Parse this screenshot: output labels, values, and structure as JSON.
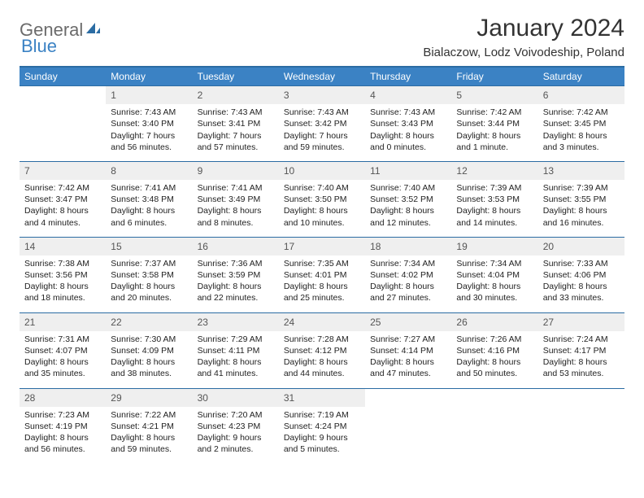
{
  "logo": {
    "part1": "General",
    "part2": "Blue"
  },
  "title": "January 2024",
  "location": "Bialaczow, Lodz Voivodeship, Poland",
  "colors": {
    "header_bg": "#3b82c4",
    "header_text": "#ffffff",
    "daynum_bg": "#efefef",
    "border": "#2b6ca3",
    "logo_gray": "#6b6b6b",
    "logo_blue": "#3b82c4"
  },
  "days_of_week": [
    "Sunday",
    "Monday",
    "Tuesday",
    "Wednesday",
    "Thursday",
    "Friday",
    "Saturday"
  ],
  "weeks": [
    {
      "nums": [
        "",
        "1",
        "2",
        "3",
        "4",
        "5",
        "6"
      ],
      "cells": [
        null,
        {
          "sunrise": "7:43 AM",
          "sunset": "3:40 PM",
          "daylight": "7 hours and 56 minutes."
        },
        {
          "sunrise": "7:43 AM",
          "sunset": "3:41 PM",
          "daylight": "7 hours and 57 minutes."
        },
        {
          "sunrise": "7:43 AM",
          "sunset": "3:42 PM",
          "daylight": "7 hours and 59 minutes."
        },
        {
          "sunrise": "7:43 AM",
          "sunset": "3:43 PM",
          "daylight": "8 hours and 0 minutes."
        },
        {
          "sunrise": "7:42 AM",
          "sunset": "3:44 PM",
          "daylight": "8 hours and 1 minute."
        },
        {
          "sunrise": "7:42 AM",
          "sunset": "3:45 PM",
          "daylight": "8 hours and 3 minutes."
        }
      ]
    },
    {
      "nums": [
        "7",
        "8",
        "9",
        "10",
        "11",
        "12",
        "13"
      ],
      "cells": [
        {
          "sunrise": "7:42 AM",
          "sunset": "3:47 PM",
          "daylight": "8 hours and 4 minutes."
        },
        {
          "sunrise": "7:41 AM",
          "sunset": "3:48 PM",
          "daylight": "8 hours and 6 minutes."
        },
        {
          "sunrise": "7:41 AM",
          "sunset": "3:49 PM",
          "daylight": "8 hours and 8 minutes."
        },
        {
          "sunrise": "7:40 AM",
          "sunset": "3:50 PM",
          "daylight": "8 hours and 10 minutes."
        },
        {
          "sunrise": "7:40 AM",
          "sunset": "3:52 PM",
          "daylight": "8 hours and 12 minutes."
        },
        {
          "sunrise": "7:39 AM",
          "sunset": "3:53 PM",
          "daylight": "8 hours and 14 minutes."
        },
        {
          "sunrise": "7:39 AM",
          "sunset": "3:55 PM",
          "daylight": "8 hours and 16 minutes."
        }
      ]
    },
    {
      "nums": [
        "14",
        "15",
        "16",
        "17",
        "18",
        "19",
        "20"
      ],
      "cells": [
        {
          "sunrise": "7:38 AM",
          "sunset": "3:56 PM",
          "daylight": "8 hours and 18 minutes."
        },
        {
          "sunrise": "7:37 AM",
          "sunset": "3:58 PM",
          "daylight": "8 hours and 20 minutes."
        },
        {
          "sunrise": "7:36 AM",
          "sunset": "3:59 PM",
          "daylight": "8 hours and 22 minutes."
        },
        {
          "sunrise": "7:35 AM",
          "sunset": "4:01 PM",
          "daylight": "8 hours and 25 minutes."
        },
        {
          "sunrise": "7:34 AM",
          "sunset": "4:02 PM",
          "daylight": "8 hours and 27 minutes."
        },
        {
          "sunrise": "7:34 AM",
          "sunset": "4:04 PM",
          "daylight": "8 hours and 30 minutes."
        },
        {
          "sunrise": "7:33 AM",
          "sunset": "4:06 PM",
          "daylight": "8 hours and 33 minutes."
        }
      ]
    },
    {
      "nums": [
        "21",
        "22",
        "23",
        "24",
        "25",
        "26",
        "27"
      ],
      "cells": [
        {
          "sunrise": "7:31 AM",
          "sunset": "4:07 PM",
          "daylight": "8 hours and 35 minutes."
        },
        {
          "sunrise": "7:30 AM",
          "sunset": "4:09 PM",
          "daylight": "8 hours and 38 minutes."
        },
        {
          "sunrise": "7:29 AM",
          "sunset": "4:11 PM",
          "daylight": "8 hours and 41 minutes."
        },
        {
          "sunrise": "7:28 AM",
          "sunset": "4:12 PM",
          "daylight": "8 hours and 44 minutes."
        },
        {
          "sunrise": "7:27 AM",
          "sunset": "4:14 PM",
          "daylight": "8 hours and 47 minutes."
        },
        {
          "sunrise": "7:26 AM",
          "sunset": "4:16 PM",
          "daylight": "8 hours and 50 minutes."
        },
        {
          "sunrise": "7:24 AM",
          "sunset": "4:17 PM",
          "daylight": "8 hours and 53 minutes."
        }
      ]
    },
    {
      "nums": [
        "28",
        "29",
        "30",
        "31",
        "",
        "",
        ""
      ],
      "cells": [
        {
          "sunrise": "7:23 AM",
          "sunset": "4:19 PM",
          "daylight": "8 hours and 56 minutes."
        },
        {
          "sunrise": "7:22 AM",
          "sunset": "4:21 PM",
          "daylight": "8 hours and 59 minutes."
        },
        {
          "sunrise": "7:20 AM",
          "sunset": "4:23 PM",
          "daylight": "9 hours and 2 minutes."
        },
        {
          "sunrise": "7:19 AM",
          "sunset": "4:24 PM",
          "daylight": "9 hours and 5 minutes."
        },
        null,
        null,
        null
      ]
    }
  ],
  "labels": {
    "sunrise": "Sunrise:",
    "sunset": "Sunset:",
    "daylight": "Daylight:"
  }
}
